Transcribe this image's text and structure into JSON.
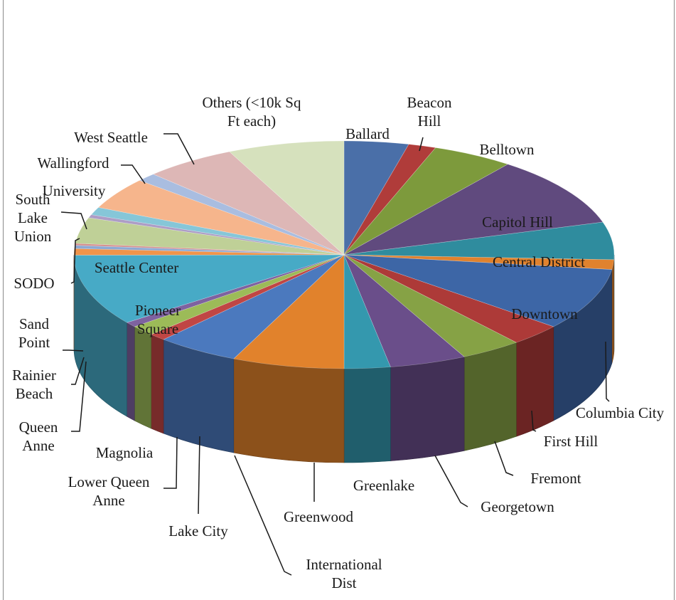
{
  "chart_data": {
    "type": "pie",
    "style": "3d",
    "legend": "none",
    "slices": [
      {
        "label": "Ballard",
        "value": 4.2,
        "color": "#4a6fa8"
      },
      {
        "label": "Beacon Hill",
        "value": 1.8,
        "color": "#b03c3a"
      },
      {
        "label": "Belltown",
        "value": 5.3,
        "color": "#7d9a3c"
      },
      {
        "label": "Capitol Hill",
        "value": 10.9,
        "color": "#604a7e"
      },
      {
        "label": "Central District",
        "value": 5.8,
        "color": "#2f8c9e"
      },
      {
        "label": "Columbia City",
        "value": 1.5,
        "color": "#e0822e"
      },
      {
        "label": "Downtown",
        "value": 9.6,
        "color": "#3d66a6"
      },
      {
        "label": "First Hill",
        "value": 3.4,
        "color": "#ad3a38"
      },
      {
        "label": "Fremont",
        "value": 4.0,
        "color": "#86a245"
      },
      {
        "label": "Georgetown",
        "value": 5.0,
        "color": "#6a4e8a"
      },
      {
        "label": "Greenlake",
        "value": 3.0,
        "color": "#3498ae"
      },
      {
        "label": "Greenwood",
        "value": 7.3,
        "color": "#e1822c"
      },
      {
        "label": "International Dist",
        "value": 5.4,
        "color": "#4b79be"
      },
      {
        "label": "Lake City",
        "value": 1.1,
        "color": "#c04644"
      },
      {
        "label": "Lower Queen Anne",
        "value": 1.6,
        "color": "#9cbb58"
      },
      {
        "label": "Magnolia",
        "value": 0.8,
        "color": "#7e62a0"
      },
      {
        "label": "Pioneer Square",
        "value": 11.0,
        "color": "#47aac6"
      },
      {
        "label": "Queen Anne",
        "value": 1.0,
        "color": "#f0944a"
      },
      {
        "label": "Rainier Beach",
        "value": 0.5,
        "color": "#8da9d3"
      },
      {
        "label": "Sand Point",
        "value": 0.3,
        "color": "#d58f8e"
      },
      {
        "label": "SODO",
        "value": 4.0,
        "color": "#bfd097"
      },
      {
        "label": "Seattle Center",
        "value": 0.5,
        "color": "#ad9dc6"
      },
      {
        "label": "South Lake Union",
        "value": 1.2,
        "color": "#86c6d8"
      },
      {
        "label": "University",
        "value": 4.9,
        "color": "#f6b58c"
      },
      {
        "label": "Wallingford",
        "value": 1.3,
        "color": "#a9bde0"
      },
      {
        "label": "West Seattle",
        "value": 6.0,
        "color": "#ddb7b6"
      },
      {
        "label": "Others (<10k Sq Ft each)",
        "value": 7.6,
        "color": "#d6e1bd"
      }
    ]
  }
}
